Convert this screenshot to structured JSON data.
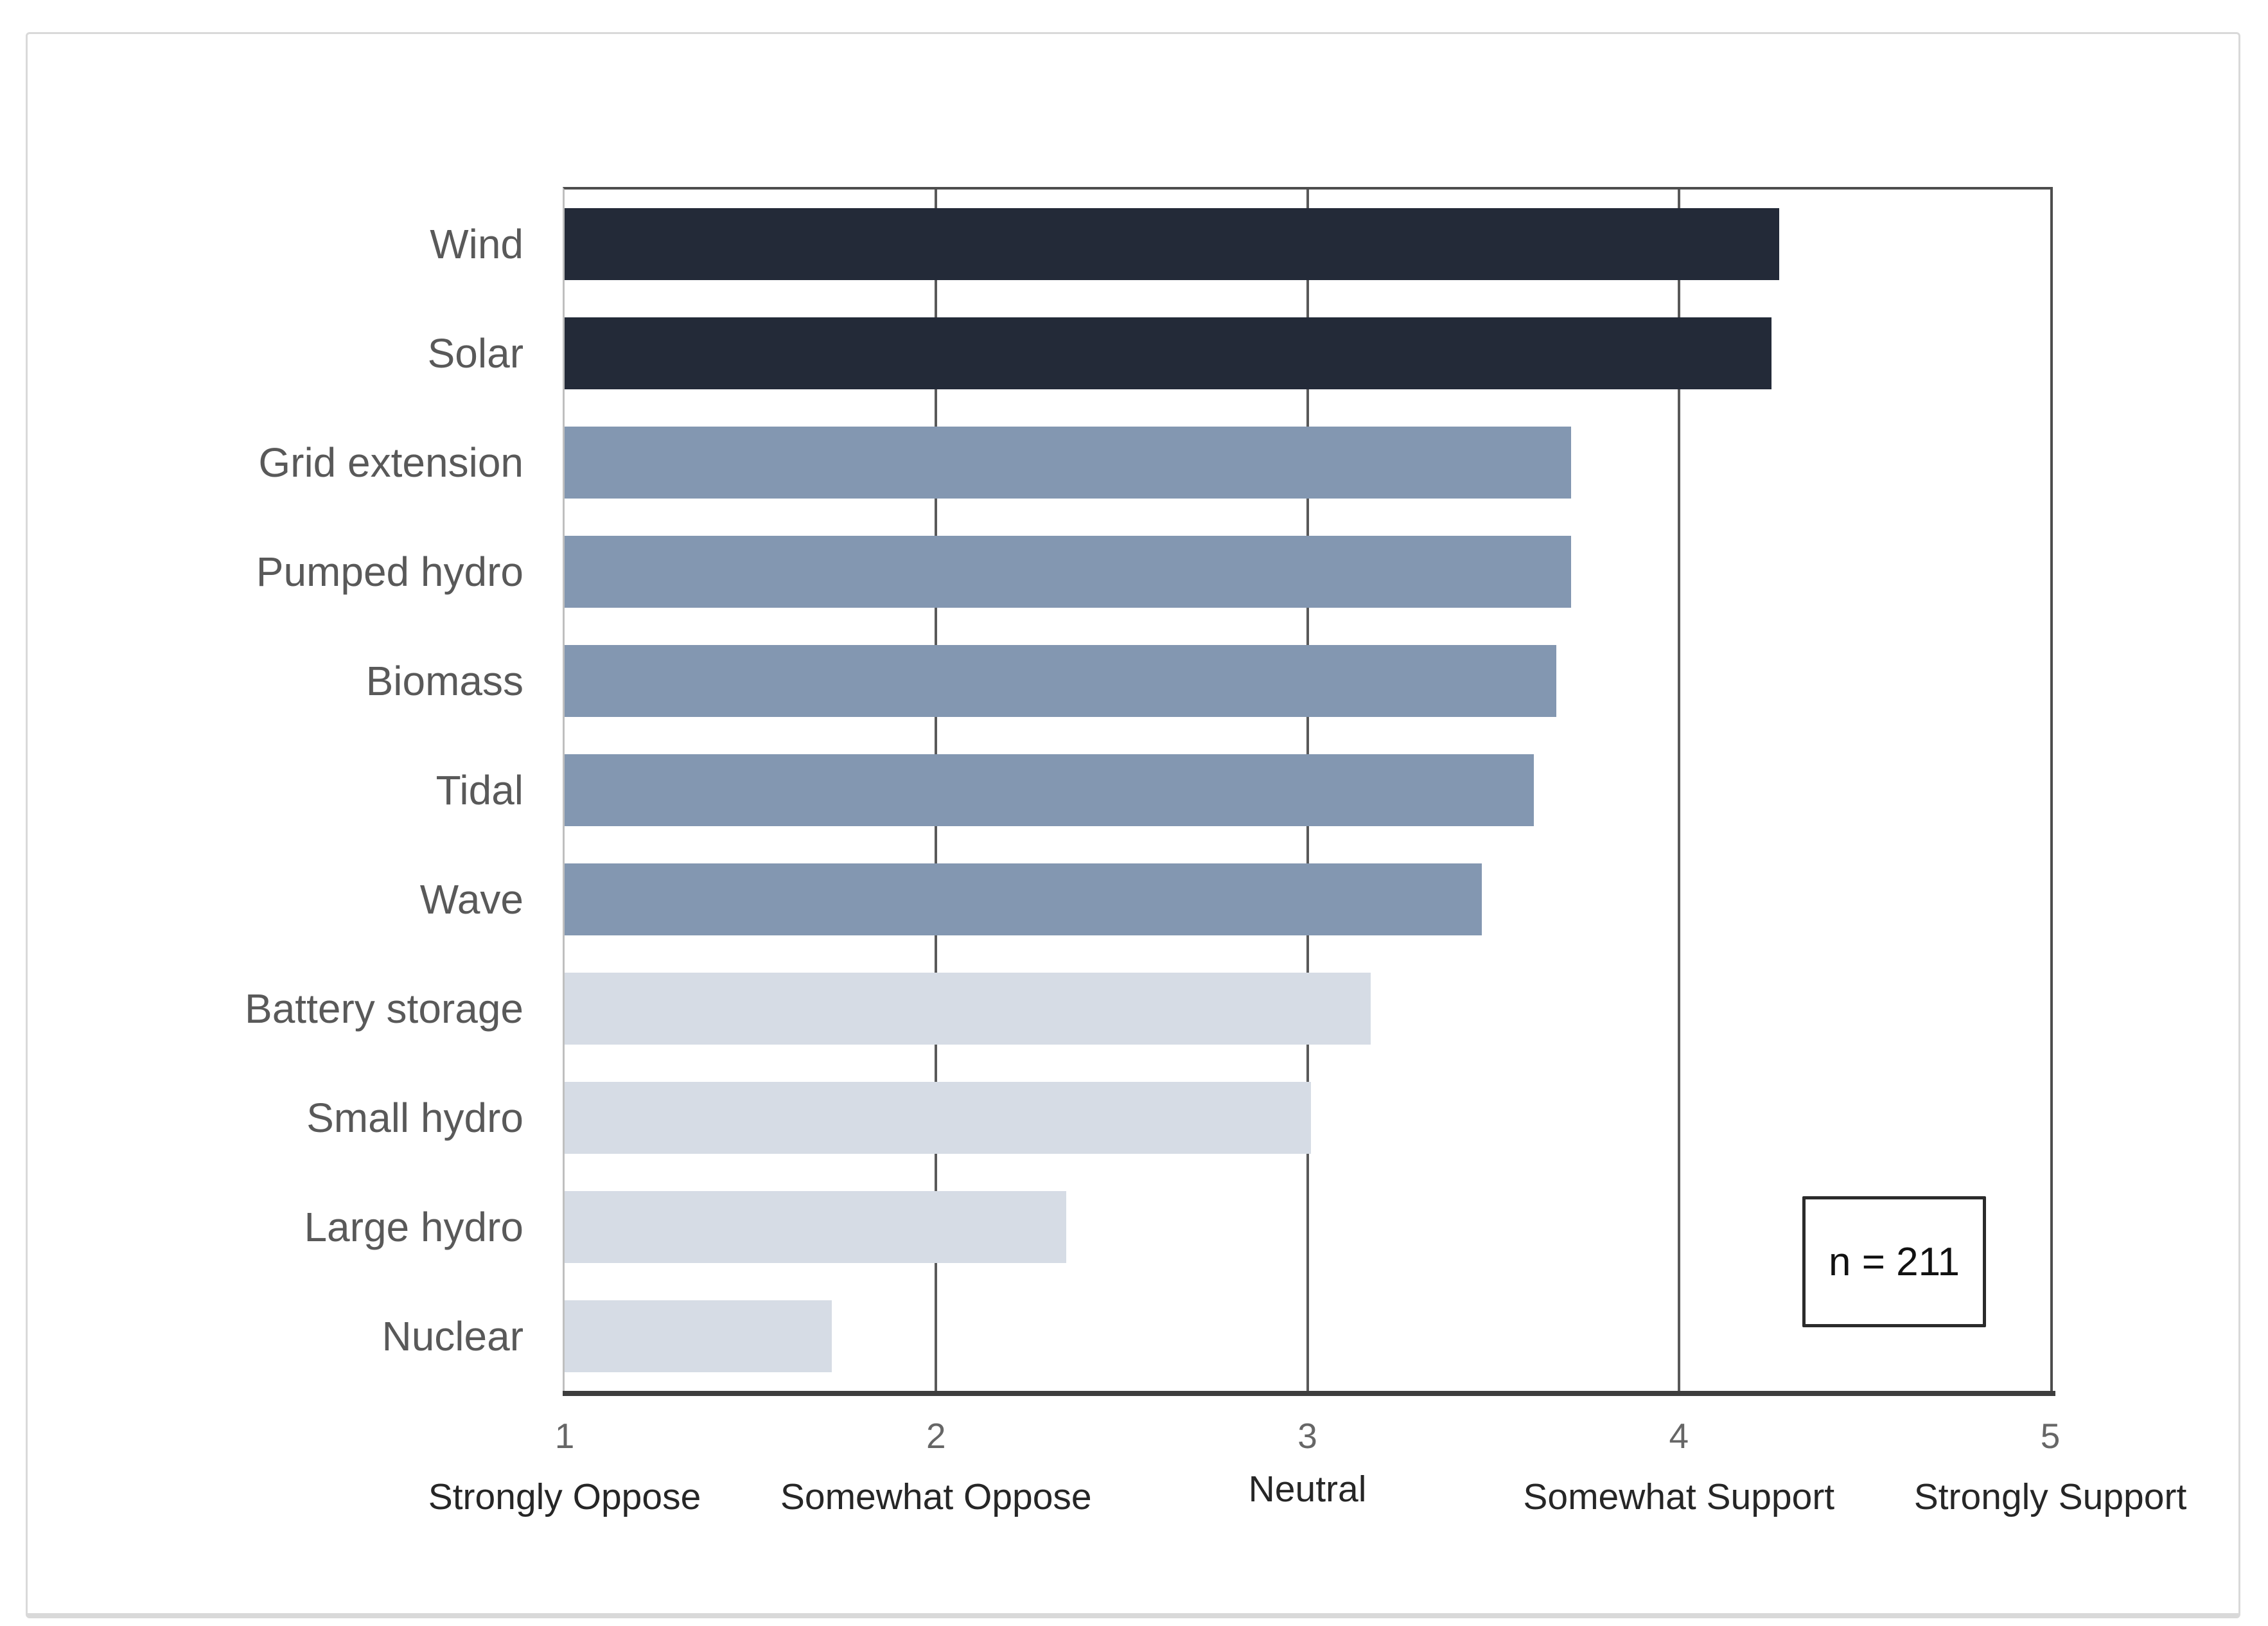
{
  "chart_data": {
    "type": "bar",
    "orientation": "horizontal",
    "title": "",
    "categories": [
      "Wind",
      "Solar",
      "Grid extension",
      "Pumped hydro",
      "Biomass",
      "Tidal",
      "Wave",
      "Battery storage",
      "Small hydro",
      "Large hydro",
      "Nuclear"
    ],
    "values": [
      4.27,
      4.25,
      3.71,
      3.71,
      3.67,
      3.61,
      3.47,
      3.17,
      3.01,
      2.35,
      1.72
    ],
    "bar_color_groups": [
      "dark",
      "dark",
      "medium",
      "medium",
      "medium",
      "medium",
      "medium",
      "light",
      "light",
      "light",
      "light"
    ],
    "xlim": [
      1,
      5
    ],
    "x_ticks": [
      {
        "value": "1",
        "label": "Strongly Oppose"
      },
      {
        "value": "2",
        "label": "Somewhat Oppose"
      },
      {
        "value": "3",
        "label": "Neutral"
      },
      {
        "value": "4",
        "label": "Somewhat Support"
      },
      {
        "value": "5",
        "label": "Strongly Support"
      }
    ],
    "gridlines_at": [
      2,
      3,
      4
    ],
    "legend_position": "none",
    "grid": "vertical-major",
    "annotation": {
      "text": "n = 211"
    }
  },
  "colors": {
    "bar_dark": "#232a38",
    "bar_medium": "#8397b1",
    "bar_light": "#d6dce5",
    "gridline": "#595959",
    "plot_border": "#4d4d4d",
    "axis_line": "#3d3d3d",
    "category_label": "#595959",
    "tick_number": "#666666",
    "tick_word": "#262626",
    "annotation_border": "#2b2b2b",
    "annotation_text": "#111111",
    "frame_border": "#d9d9d9",
    "background": "#ffffff"
  }
}
